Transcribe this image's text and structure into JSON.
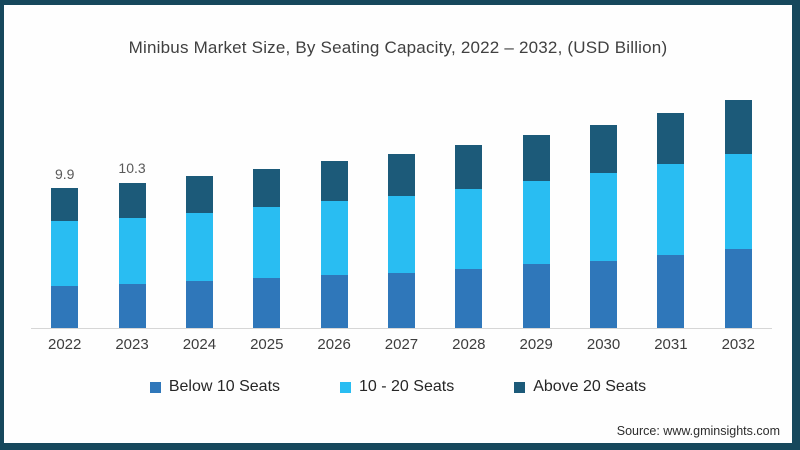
{
  "page": {
    "frame_color": "#16485c",
    "background": "#fefefe"
  },
  "chart_data": {
    "type": "bar",
    "stacked": true,
    "title": "Minibus Market Size, By Seating Capacity, 2022 – 2032, (USD Billion)",
    "xlabel": "",
    "ylabel": "",
    "grid": false,
    "y_axis_visible": false,
    "legend_position": "bottom",
    "ylim": [
      0,
      17
    ],
    "categories": [
      "2022",
      "2023",
      "2024",
      "2025",
      "2026",
      "2027",
      "2028",
      "2029",
      "2030",
      "2031",
      "2032"
    ],
    "series": [
      {
        "name": "Below 10 Seats",
        "color": "#2f77ba",
        "values": [
          3.0,
          3.2,
          3.35,
          3.6,
          3.8,
          3.95,
          4.25,
          4.55,
          4.8,
          5.2,
          5.65
        ]
      },
      {
        "name": "10 - 20 Seats",
        "color": "#29bdf2",
        "values": [
          4.6,
          4.65,
          4.8,
          5.0,
          5.2,
          5.45,
          5.6,
          5.9,
          6.2,
          6.4,
          6.65
        ]
      },
      {
        "name": "Above 20 Seats",
        "color": "#1c5a79",
        "values": [
          2.3,
          2.45,
          2.6,
          2.65,
          2.8,
          2.9,
          3.1,
          3.2,
          3.4,
          3.6,
          3.8
        ]
      }
    ],
    "data_labels": [
      {
        "category": "2022",
        "text": "9.9"
      },
      {
        "category": "2023",
        "text": "10.3"
      }
    ]
  },
  "source": "Source: www.gminsights.com"
}
